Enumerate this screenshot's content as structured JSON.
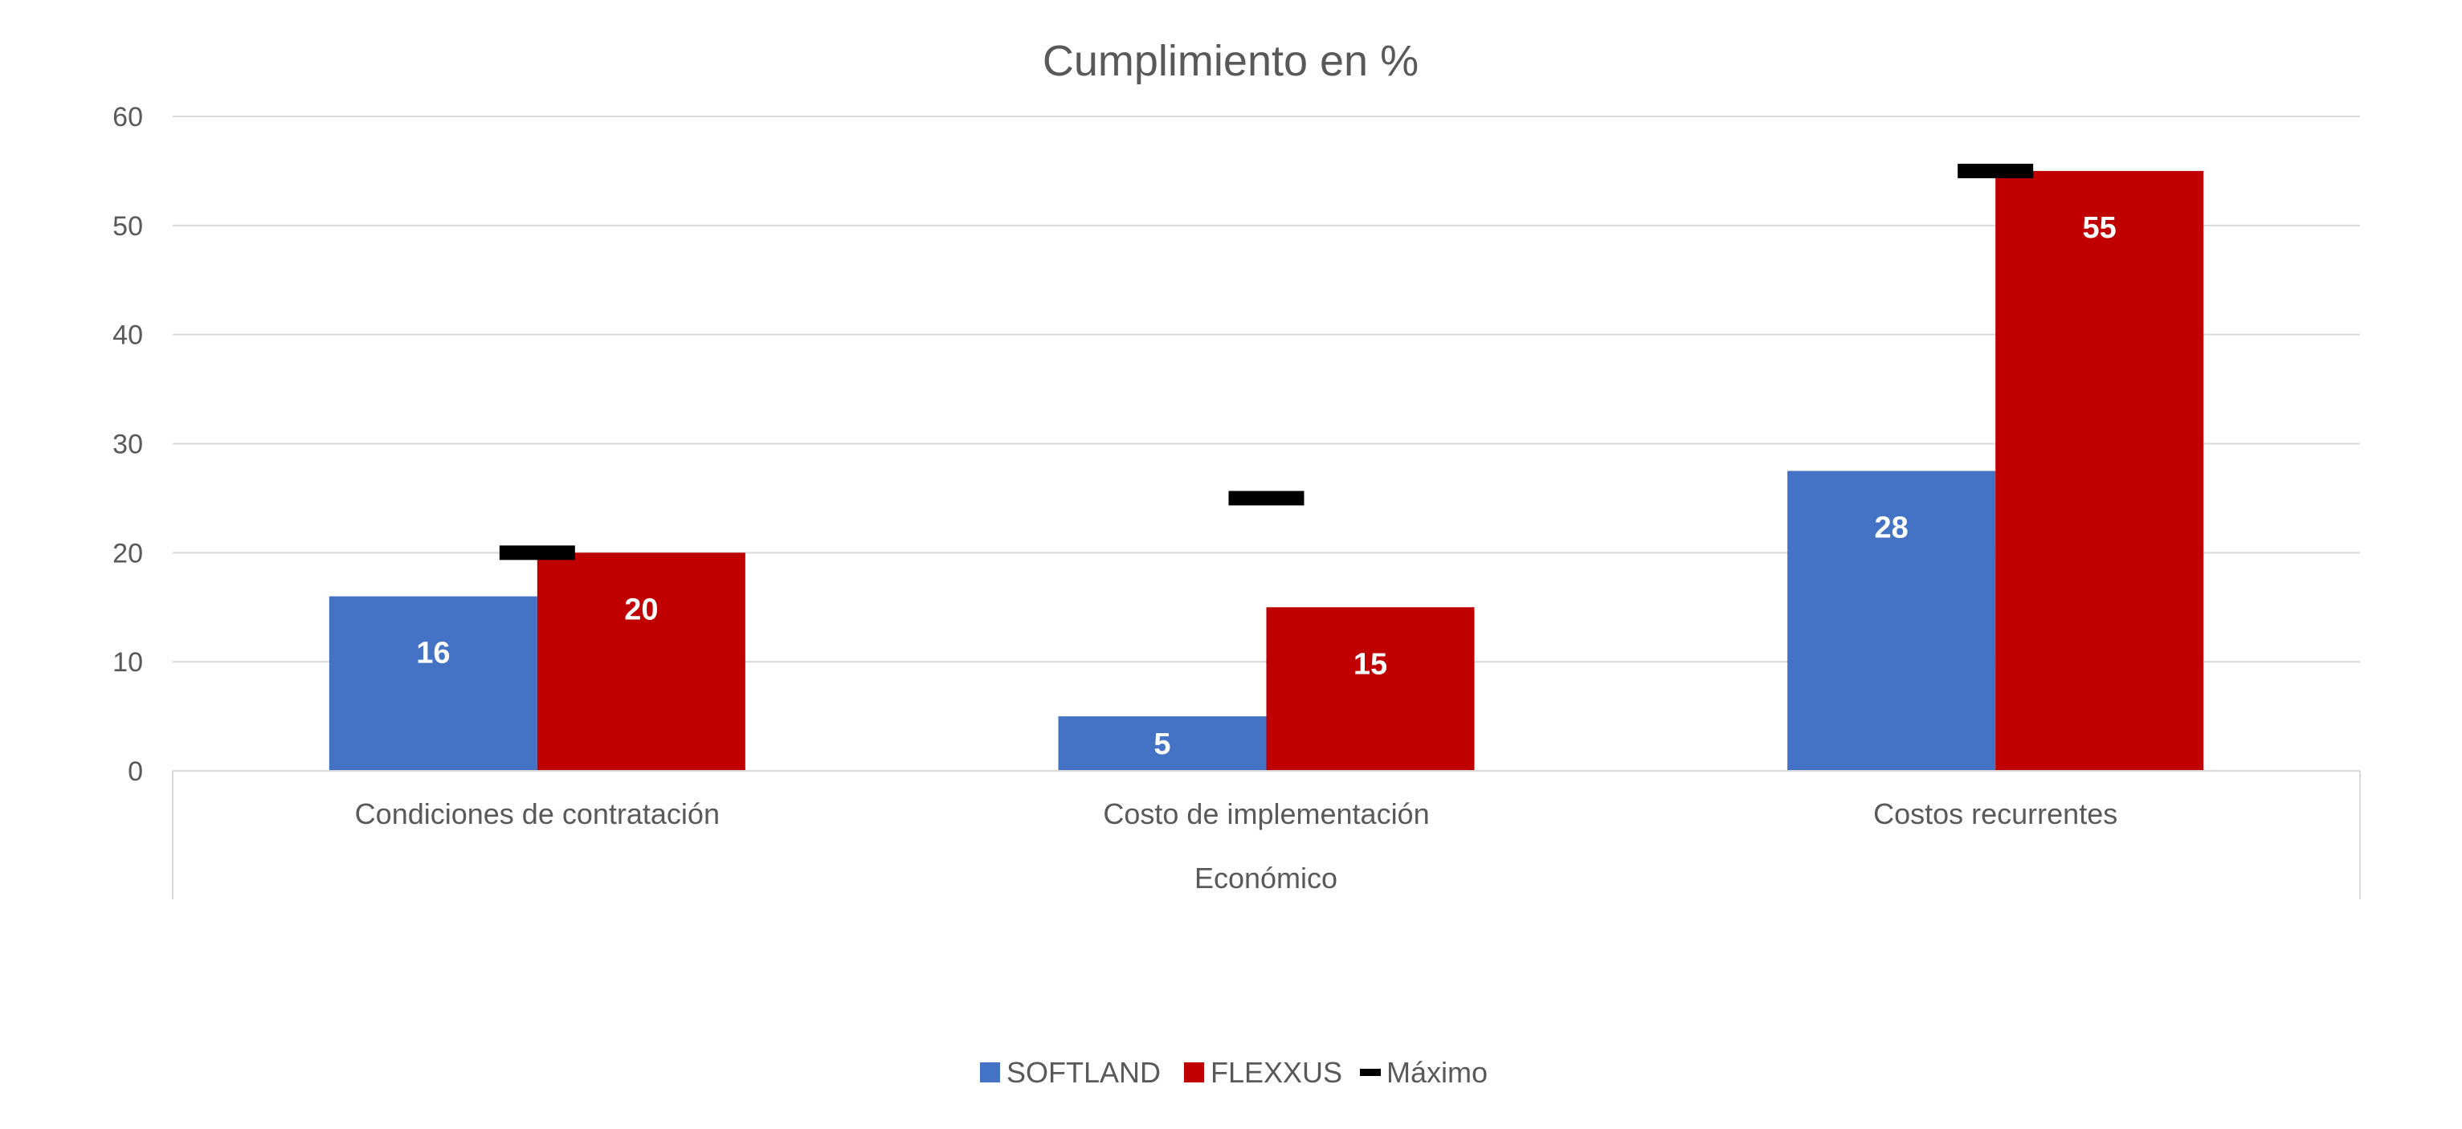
{
  "chart_data": {
    "type": "bar",
    "title": "Cumplimiento en %",
    "group_label": "Económico",
    "categories": [
      "Condiciones de contratación",
      "Costo de implementación",
      "Costos recurrentes"
    ],
    "series": [
      {
        "name": "SOFTLAND",
        "values": [
          16,
          5,
          27.5
        ],
        "labels": [
          "16",
          "5",
          "28"
        ],
        "color": "#4472C4"
      },
      {
        "name": "FLEXXUS",
        "values": [
          20,
          15,
          55
        ],
        "labels": [
          "20",
          "15",
          "55"
        ],
        "color": "#C00000"
      }
    ],
    "maximum": {
      "name": "Máximo",
      "values": [
        20,
        25,
        55
      ],
      "color": "#000000"
    },
    "ylim": [
      0,
      60
    ],
    "yticks": [
      "0",
      "10",
      "20",
      "30",
      "40",
      "50",
      "60"
    ],
    "grid": true,
    "legend_position": "bottom"
  }
}
